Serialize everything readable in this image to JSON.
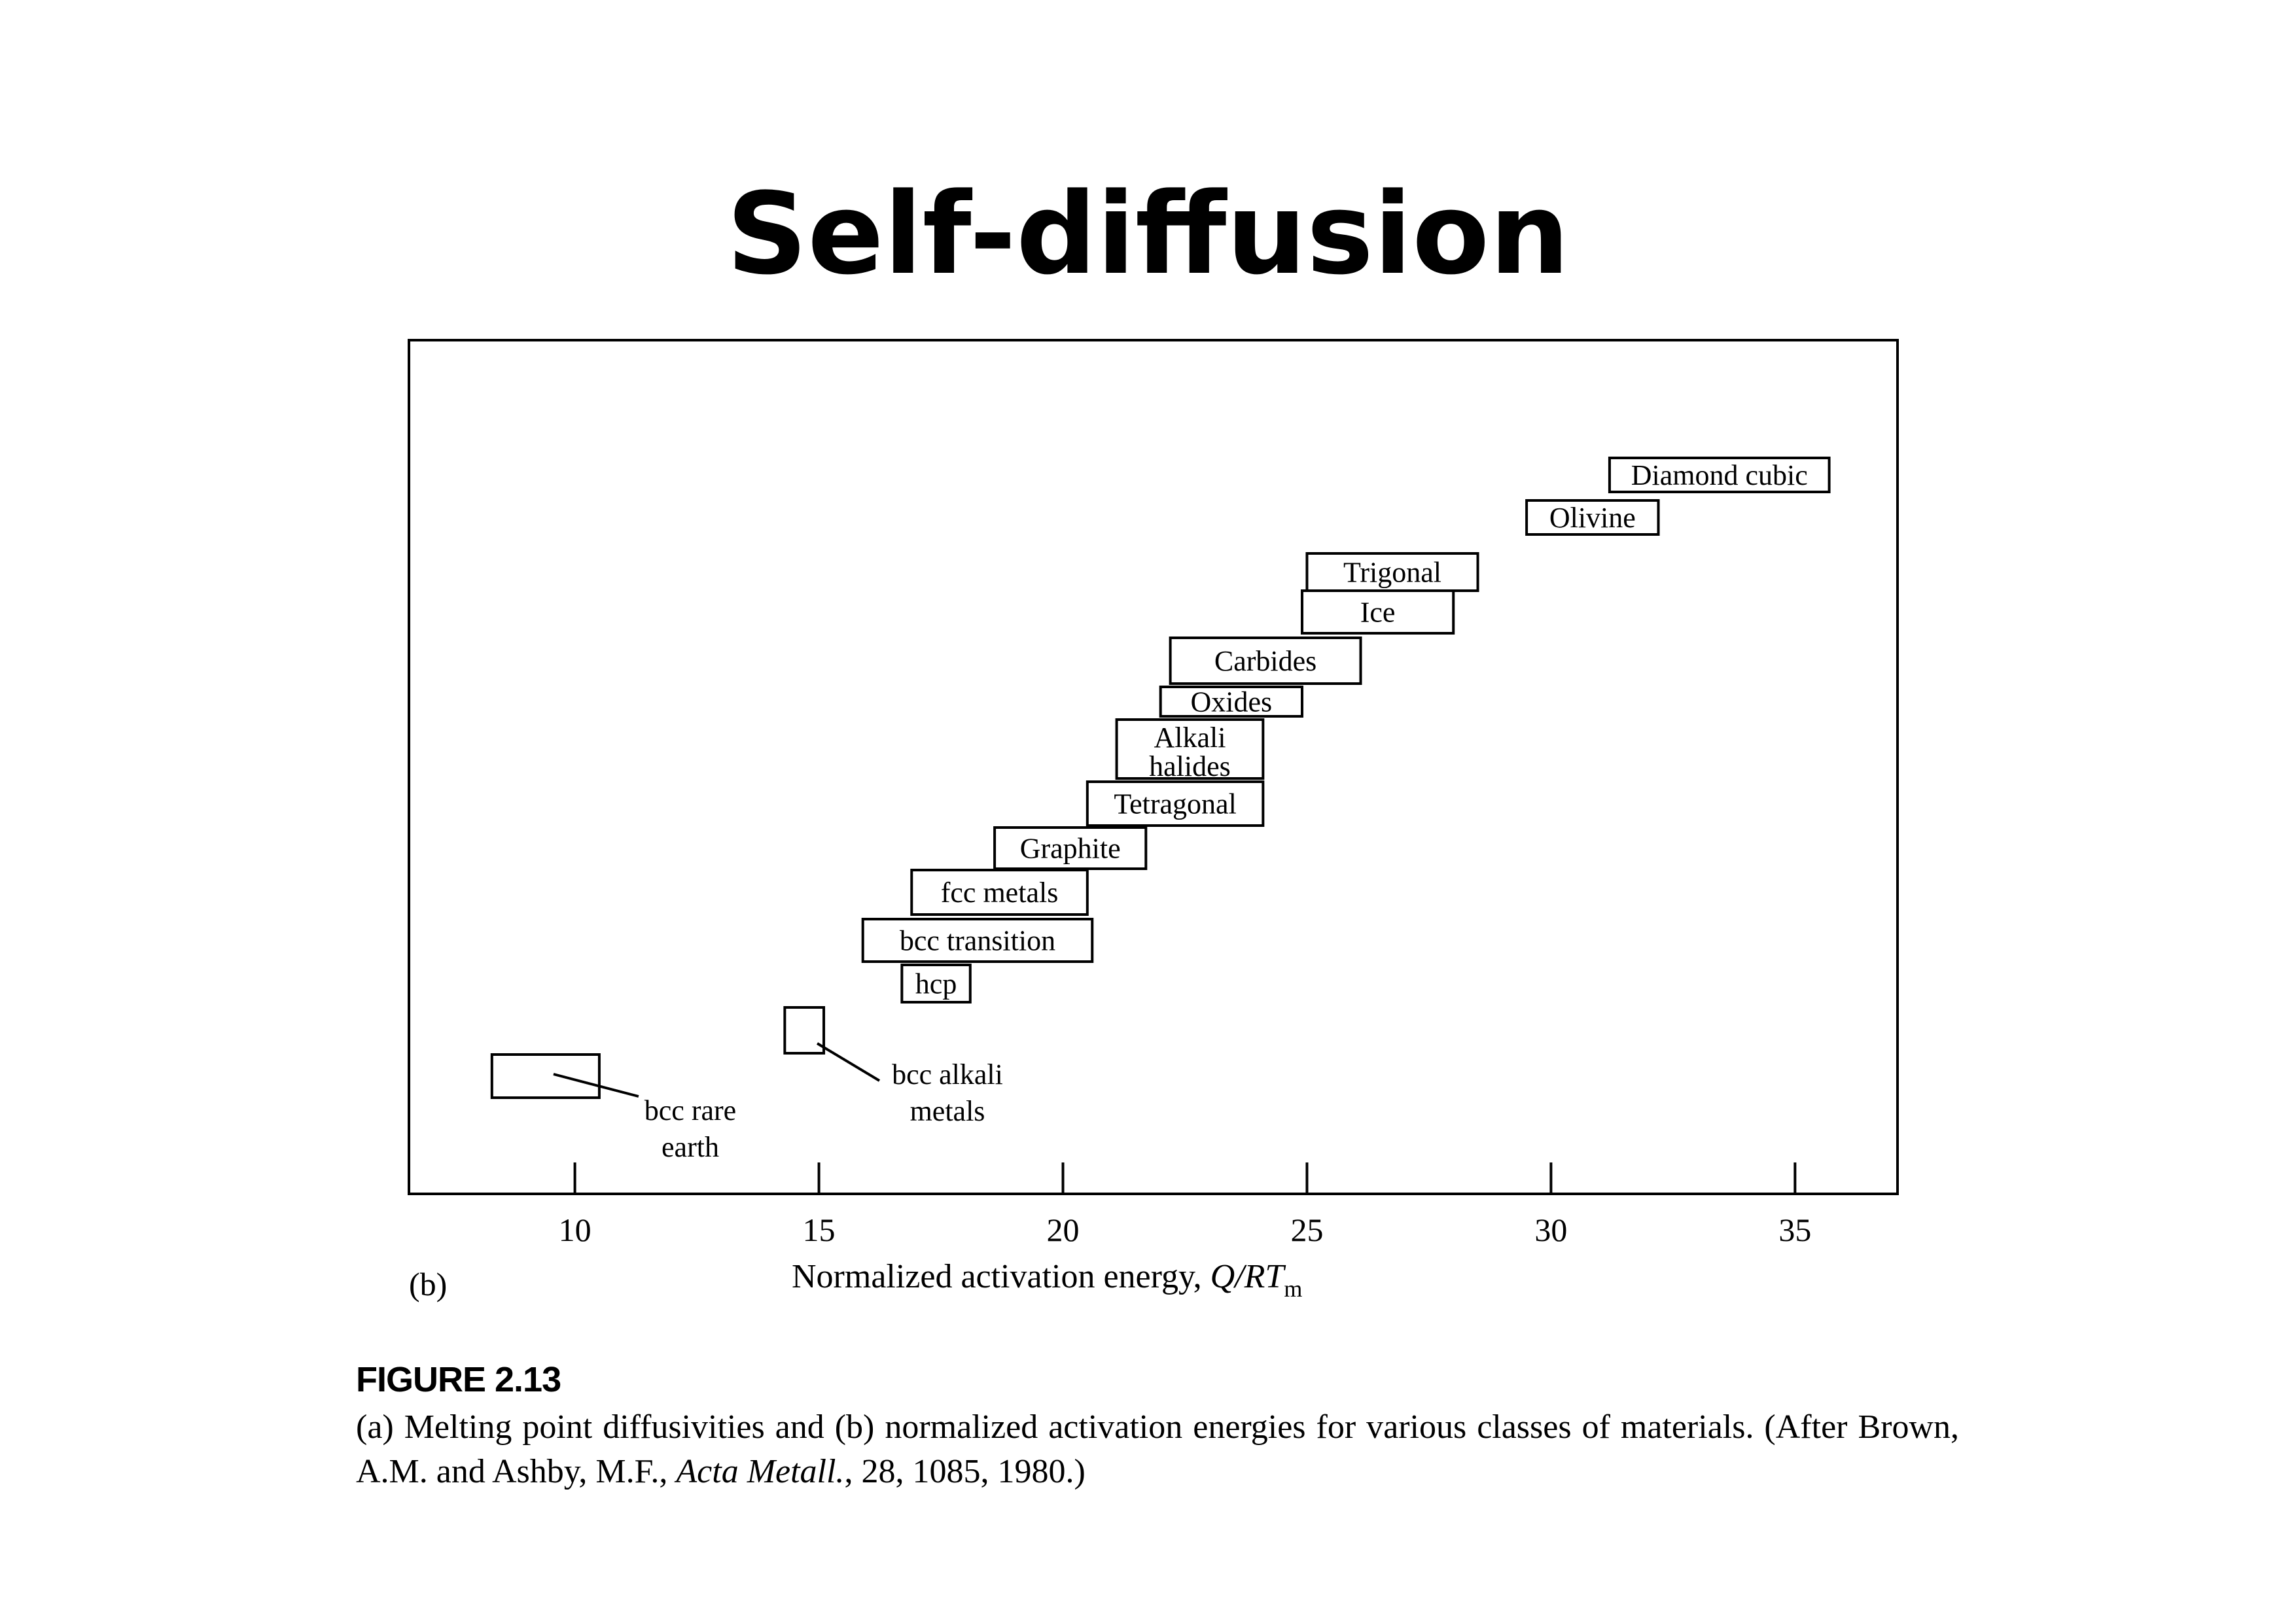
{
  "slide": {
    "title": "Self-diffusion"
  },
  "chart_data": {
    "type": "bar",
    "panel_label": "(b)",
    "xlabel_prefix": "Normalized activation energy, ",
    "xlabel_math": "Q/RT",
    "xlabel_subscript": "m",
    "xlim": [
      6.6,
      37.1
    ],
    "xticks": [
      10,
      15,
      20,
      25,
      30,
      35
    ],
    "tick_labels": [
      "10",
      "15",
      "20",
      "25",
      "30",
      "35"
    ],
    "grid": false,
    "legend": "none",
    "ranges": [
      {
        "label": "Diamond cubic",
        "x0": 31.2,
        "x1": 35.7,
        "level": 0
      },
      {
        "label": "Olivine",
        "x0": 29.5,
        "x1": 32.2,
        "level": 1
      },
      {
        "label": "Trigonal",
        "x0": 25.0,
        "x1": 28.5,
        "level": 2
      },
      {
        "label": "Ice",
        "x0": 24.9,
        "x1": 28.0,
        "level": 3
      },
      {
        "label": "Carbides",
        "x0": 22.2,
        "x1": 26.1,
        "level": 4
      },
      {
        "label": "Oxides",
        "x0": 22.0,
        "x1": 24.9,
        "level": 5
      },
      {
        "label": "Alkali halides",
        "x0": 21.1,
        "x1": 24.1,
        "level": 6
      },
      {
        "label": "Tetragonal",
        "x0": 20.5,
        "x1": 24.1,
        "level": 7
      },
      {
        "label": "Graphite",
        "x0": 18.6,
        "x1": 21.7,
        "level": 8
      },
      {
        "label": "fcc metals",
        "x0": 16.9,
        "x1": 20.5,
        "level": 9
      },
      {
        "label": "bcc transition",
        "x0": 15.9,
        "x1": 20.6,
        "level": 10
      },
      {
        "label": "hcp",
        "x0": 16.7,
        "x1": 18.1,
        "level": 11
      },
      {
        "label": "bcc alkali metals",
        "x0": 14.3,
        "x1": 15.1,
        "level": 12
      },
      {
        "label": "bcc rare earth",
        "x0": 8.3,
        "x1": 10.5,
        "level": 13
      }
    ]
  },
  "figure": {
    "number": "FIGURE 2.13",
    "caption_pre": "(a) Melting point diffusivities and (b) normalized activation energies for various classes of materials. (After Brown, A.M. and Ashby, M.F., ",
    "caption_journal": "Acta Metall.",
    "caption_post": ", 28, 1085, 1980.)"
  }
}
